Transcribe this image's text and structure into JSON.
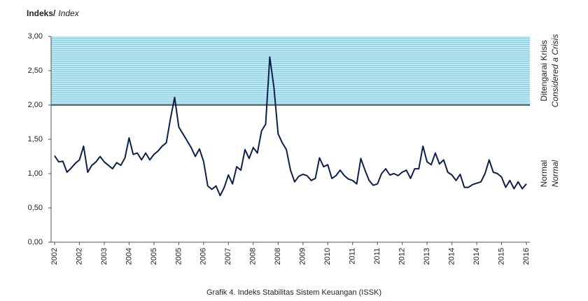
{
  "chart_data": {
    "type": "line",
    "title": "Indeks/",
    "title_italic": "Index",
    "caption": "Grafik 4. Indeks Stabilitas Sistem Keuangan (ISSK)",
    "zone_labels": {
      "crisis": "Ditengarai Krisis",
      "crisis_en": "Considered a Crisis",
      "normal": "Normal",
      "normal_en": "Normal"
    },
    "crisis_threshold": 2,
    "crisis_color": "#bfe7f1",
    "categories": [
      "2002",
      null,
      null,
      null,
      null,
      null,
      "2002",
      null,
      null,
      null,
      null,
      null,
      "2003",
      null,
      null,
      null,
      null,
      null,
      "2004",
      null,
      null,
      null,
      null,
      null,
      "2005",
      null,
      null,
      null,
      null,
      null,
      "2005",
      null,
      null,
      null,
      null,
      null,
      "2006",
      null,
      null,
      null,
      null,
      null,
      "2007",
      null,
      null,
      null,
      null,
      null,
      "2008",
      null,
      null,
      null,
      null,
      null,
      "2008",
      null,
      null,
      null,
      null,
      null,
      "2009",
      null,
      null,
      null,
      null,
      null,
      "2010",
      null,
      null,
      null,
      null,
      null,
      "2011",
      null,
      null,
      null,
      null,
      null,
      "2011",
      null,
      null,
      null,
      null,
      null,
      "2012",
      null,
      null,
      null,
      null,
      null,
      "2013",
      null,
      null,
      null,
      null,
      null,
      "2014",
      null,
      null,
      null,
      null,
      null,
      "2014",
      null,
      null,
      null,
      null,
      null,
      "2015",
      null,
      null,
      null,
      null,
      null,
      "2016"
    ],
    "series": [
      {
        "name": "ISSK",
        "color": "#0b1f4d",
        "values": [
          1.26,
          1.17,
          1.18,
          1.02,
          1.08,
          1.15,
          1.2,
          1.4,
          1.02,
          1.12,
          1.17,
          1.25,
          1.17,
          1.12,
          1.07,
          1.16,
          1.12,
          1.23,
          1.52,
          1.28,
          1.3,
          1.2,
          1.3,
          1.2,
          1.28,
          1.33,
          1.4,
          1.45,
          1.8,
          2.11,
          1.68,
          1.58,
          1.48,
          1.38,
          1.25,
          1.36,
          1.18,
          0.82,
          0.77,
          0.82,
          0.68,
          0.8,
          0.98,
          0.85,
          1.1,
          1.05,
          1.35,
          1.22,
          1.38,
          1.3,
          1.62,
          1.72,
          2.7,
          2.25,
          1.58,
          1.45,
          1.35,
          1.05,
          0.88,
          0.96,
          0.99,
          0.97,
          0.9,
          0.93,
          1.23,
          1.1,
          1.13,
          0.93,
          0.97,
          1.05,
          0.97,
          0.92,
          0.9,
          0.85,
          1.22,
          1.05,
          0.9,
          0.83,
          0.85,
          1.0,
          1.07,
          0.98,
          1.0,
          0.97,
          1.02,
          1.05,
          0.93,
          1.07,
          1.07,
          1.4,
          1.17,
          1.13,
          1.3,
          1.14,
          1.2,
          1.02,
          0.98,
          0.9,
          0.99,
          0.8,
          0.8,
          0.84,
          0.86,
          0.88,
          1.0,
          1.2,
          1.02,
          1.0,
          0.95,
          0.8,
          0.9,
          0.78,
          0.88,
          0.78,
          0.85
        ]
      }
    ],
    "ylim": [
      0,
      3
    ],
    "yticks": [
      {
        "value": 0,
        "label": "0,00"
      },
      {
        "value": 0.5,
        "label": "0,50"
      },
      {
        "value": 1,
        "label": "1,00"
      },
      {
        "value": 1.5,
        "label": "1,50"
      },
      {
        "value": 2,
        "label": "2,00"
      },
      {
        "value": 2.5,
        "label": "2,50"
      },
      {
        "value": 3,
        "label": "3,00"
      }
    ]
  }
}
